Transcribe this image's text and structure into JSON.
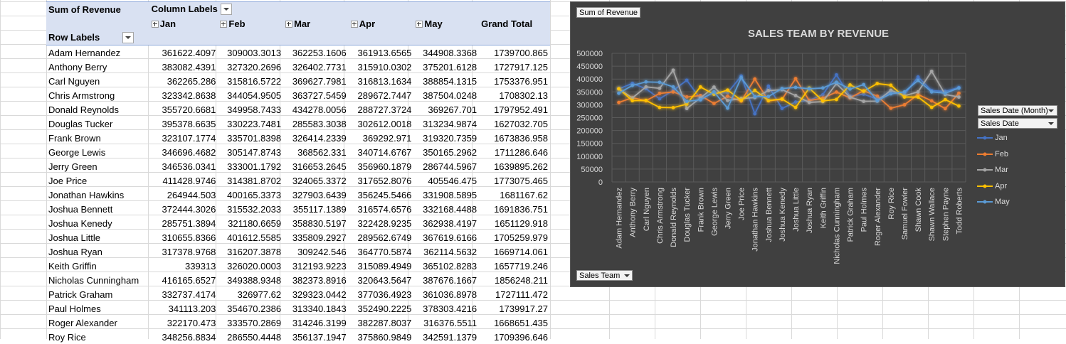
{
  "pivot": {
    "sum_label": "Sum of Revenue",
    "column_labels": "Column Labels",
    "row_labels": "Row Labels",
    "months": [
      "Jan",
      "Feb",
      "Mar",
      "Apr",
      "May"
    ],
    "grand_total": "Grand Total",
    "rows": [
      {
        "name": "Adam Hernandez",
        "v": [
          "361622.4097",
          "309003.3013",
          "362253.1606",
          "361913.6565",
          "344908.3368",
          "1739700.865"
        ]
      },
      {
        "name": "Anthony Berry",
        "v": [
          "383082.4391",
          "327320.2696",
          "326402.7731",
          "315910.0302",
          "375201.6128",
          "1727917.125"
        ]
      },
      {
        "name": "Carl Nguyen",
        "v": [
          "362265.286",
          "315816.5722",
          "369627.7981",
          "316813.1634",
          "388854.1315",
          "1753376.951"
        ]
      },
      {
        "name": "Chris Armstrong",
        "v": [
          "323342.8638",
          "344054.9505",
          "363727.5459",
          "289672.7447",
          "387504.0248",
          "1708302.13"
        ]
      },
      {
        "name": "Donald Reynolds",
        "v": [
          "355720.6681",
          "349958.7433",
          "434278.0056",
          "288727.3724",
          "369267.701",
          "1797952.491"
        ]
      },
      {
        "name": "Douglas Tucker",
        "v": [
          "395378.6635",
          "330223.7481",
          "285583.3038",
          "302612.0018",
          "313234.9874",
          "1627032.705"
        ]
      },
      {
        "name": "Frank Brown",
        "v": [
          "323107.1774",
          "335701.8398",
          "326414.2339",
          "369292.971",
          "319320.7359",
          "1673836.958"
        ]
      },
      {
        "name": "George Lewis",
        "v": [
          "346696.4682",
          "305147.8743",
          "368562.331",
          "340714.6767",
          "350165.2962",
          "1711286.646"
        ]
      },
      {
        "name": "Jerry Green",
        "v": [
          "346536.0341",
          "333001.1792",
          "316653.2645",
          "356960.1879",
          "286744.5967",
          "1639895.262"
        ]
      },
      {
        "name": "Joe Price",
        "v": [
          "411428.9746",
          "314381.8702",
          "324065.3372",
          "317652.8076",
          "405546.475",
          "1773075.465"
        ]
      },
      {
        "name": "Jonathan Hawkins",
        "v": [
          "264944.503",
          "400165.3373",
          "327903.6439",
          "356245.5466",
          "331908.5895",
          "1681167.62"
        ]
      },
      {
        "name": "Joshua Bennett",
        "v": [
          "372444.3026",
          "315532.2033",
          "355117.1389",
          "316574.6576",
          "332168.4488",
          "1691836.751"
        ]
      },
      {
        "name": "Joshua Kenedy",
        "v": [
          "285751.3894",
          "321180.6659",
          "358830.5197",
          "322428.9235",
          "362938.4197",
          "1651129.918"
        ]
      },
      {
        "name": "Joshua Little",
        "v": [
          "310655.8366",
          "401612.5585",
          "335809.2927",
          "289562.6749",
          "367619.6166",
          "1705259.979"
        ]
      },
      {
        "name": "Joshua Ryan",
        "v": [
          "317378.9768",
          "316207.3878",
          "309242.546",
          "364770.5874",
          "362114.5632",
          "1669714.061"
        ]
      },
      {
        "name": "Keith Griffin",
        "v": [
          "339313",
          "326020.0003",
          "312193.9223",
          "315089.4949",
          "365102.8283",
          "1657719.246"
        ]
      },
      {
        "name": "Nicholas Cunningham",
        "v": [
          "416165.6527",
          "349388.9348",
          "382373.8916",
          "320643.5647",
          "387676.1667",
          "1856248.211"
        ]
      },
      {
        "name": "Patrick Graham",
        "v": [
          "332737.4174",
          "326977.62",
          "329323.0442",
          "377036.4923",
          "361036.8978",
          "1727111.472"
        ]
      },
      {
        "name": "Paul Holmes",
        "v": [
          "341113.203",
          "354670.2386",
          "313340.1843",
          "352490.2225",
          "378303.4216",
          "1739917.27"
        ]
      },
      {
        "name": "Roger Alexander",
        "v": [
          "322170.473",
          "333570.2869",
          "314246.3199",
          "382287.8037",
          "316376.5511",
          "1668651.435"
        ]
      },
      {
        "name": "Roy Rice",
        "v": [
          "348256.8834",
          "286550.4448",
          "356137.1947",
          "375860.9849",
          "342591.1379",
          "1709396.646"
        ]
      }
    ]
  },
  "chart": {
    "sum_button": "Sum of Revenue",
    "sales_date_month_button": "Sales Date (Month)",
    "sales_date_button": "Sales Date",
    "sales_team_button": "Sales Team"
  },
  "chart_data": {
    "type": "line",
    "title": "SALES TEAM BY REVENUE",
    "xlabel": "",
    "ylabel": "",
    "ylim": [
      0,
      500000
    ],
    "yticks": [
      "500000",
      "450000",
      "400000",
      "350000",
      "300000",
      "250000",
      "200000",
      "150000",
      "100000",
      "50000",
      "0"
    ],
    "grid": true,
    "legend_position": "right",
    "categories": [
      "Adam Hernandez",
      "Anthony Berry",
      "Carl Nguyen",
      "Chris Armstrong",
      "Donald Reynolds",
      "Douglas Tucker",
      "Frank Brown",
      "George Lewis",
      "Jerry Green",
      "Joe Price",
      "Jonathan Hawkins",
      "Joshua Bennett",
      "Joshua Kenedy",
      "Joshua Little",
      "Joshua Ryan",
      "Keith Griffin",
      "Nicholas Cunningham",
      "Patrick Graham",
      "Paul Holmes",
      "Roger Alexander",
      "Roy Rice",
      "Samuel Fowler",
      "Shawn Cook",
      "Shawn Wallace",
      "Stephen Payne",
      "Todd Roberts"
    ],
    "series": [
      {
        "name": "Jan",
        "color": "#4472c4",
        "values": [
          361622,
          383082,
          362265,
          323343,
          355721,
          395379,
          323107,
          346696,
          346536,
          411429,
          264945,
          372444,
          285751,
          310656,
          317379,
          339313,
          416166,
          332737,
          341113,
          322170,
          348257,
          340000,
          408000,
          355000,
          352000,
          367000
        ]
      },
      {
        "name": "Feb",
        "color": "#ed7d31",
        "values": [
          309003,
          327320,
          315817,
          344055,
          349959,
          330224,
          335702,
          305148,
          333001,
          314382,
          400165,
          315532,
          321181,
          401613,
          316207,
          326020,
          349389,
          326978,
          354670,
          333570,
          286550,
          300000,
          340000,
          315000,
          285000,
          345000
        ]
      },
      {
        "name": "Mar",
        "color": "#a5a5a5",
        "values": [
          362253,
          326403,
          369628,
          363728,
          434278,
          285583,
          326414,
          368562,
          316653,
          324065,
          327904,
          355117,
          358831,
          335809,
          309243,
          312194,
          382374,
          329323,
          313340,
          314246,
          356137,
          335000,
          350000,
          430000,
          340000,
          330000
        ]
      },
      {
        "name": "Apr",
        "color": "#ffc000",
        "values": [
          361914,
          315910,
          316813,
          289673,
          288727,
          302612,
          369293,
          340715,
          356960,
          317653,
          356246,
          316575,
          322429,
          289563,
          364771,
          315089,
          320644,
          377036,
          352490,
          382288,
          375861,
          330000,
          330000,
          290000,
          320000,
          295000
        ]
      },
      {
        "name": "May",
        "color": "#5b9bd5",
        "values": [
          344908,
          375202,
          388854,
          387504,
          369268,
          313235,
          319321,
          350165,
          286745,
          405546,
          331909,
          332168,
          362938,
          367620,
          362115,
          365103,
          387676,
          361037,
          378303,
          316377,
          342591,
          350000,
          395000,
          350000,
          345000,
          365000
        ]
      }
    ]
  }
}
